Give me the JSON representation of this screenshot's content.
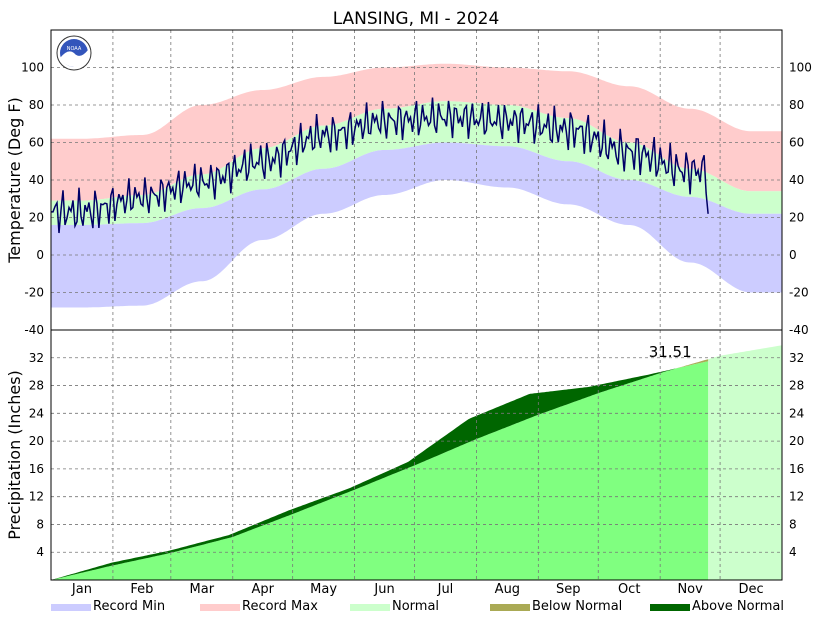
{
  "chart_data": {
    "title": "LANSING, MI - 2024",
    "months": [
      "Jan",
      "Feb",
      "Mar",
      "Apr",
      "May",
      "Jun",
      "Jul",
      "Aug",
      "Sep",
      "Oct",
      "Nov",
      "Dec"
    ],
    "temperature": {
      "type": "area",
      "ylabel": "Temperature (Deg F)",
      "ylim": [
        -40,
        120
      ],
      "yticks": [
        -40,
        -20,
        0,
        20,
        40,
        60,
        80,
        100
      ],
      "grid": true,
      "colors": {
        "record_max": "#ffcccc",
        "record_min": "#ccccff",
        "normal": "#ccffcc",
        "observed": "#000066"
      },
      "monthly_series": {
        "record_max": [
          62,
          64,
          80,
          88,
          95,
          100,
          102,
          100,
          98,
          90,
          78,
          66
        ],
        "normal_high": [
          29,
          32,
          43,
          57,
          69,
          78,
          82,
          80,
          73,
          60,
          46,
          34
        ],
        "normal_low": [
          16,
          17,
          25,
          35,
          46,
          56,
          60,
          58,
          50,
          40,
          31,
          22
        ],
        "record_min": [
          -28,
          -27,
          -14,
          8,
          22,
          32,
          40,
          36,
          27,
          16,
          -4,
          -20
        ],
        "observed_high": [
          36,
          42,
          50,
          62,
          76,
          83,
          85,
          83,
          80,
          68,
          58
        ],
        "observed_low": [
          10,
          20,
          28,
          38,
          52,
          60,
          62,
          60,
          54,
          42,
          32
        ]
      },
      "observed_last_value": 22
    },
    "precipitation": {
      "type": "area",
      "ylabel": "Precipitation (Inches)",
      "ylim": [
        0,
        36
      ],
      "yticks": [
        4,
        8,
        12,
        16,
        20,
        24,
        28,
        32
      ],
      "grid": true,
      "colors": {
        "normal": "#80ff80",
        "normal_future": "#ccffcc",
        "above_normal": "#006600",
        "below_normal": "#aaaa55"
      },
      "month_start_cumulative": {
        "observed": [
          0,
          2.5,
          4.2,
          6.5,
          10.0,
          13.2,
          17.0,
          23.2,
          26.8,
          27.8,
          29.6,
          31.51
        ],
        "normal": [
          0,
          2.1,
          3.9,
          6.2,
          9.5,
          13.0,
          16.5,
          20.3,
          23.8,
          26.9,
          29.8,
          32.3
        ]
      },
      "normal_year_end": 33.8,
      "annotation": "31.51"
    },
    "legend": [
      {
        "label": "Record Min",
        "color": "#ccccff"
      },
      {
        "label": "Record Max",
        "color": "#ffcccc"
      },
      {
        "label": "Normal",
        "color": "#ccffcc"
      },
      {
        "label": "Below Normal",
        "color": "#aaaa55"
      },
      {
        "label": "Above Normal",
        "color": "#006600"
      }
    ]
  }
}
